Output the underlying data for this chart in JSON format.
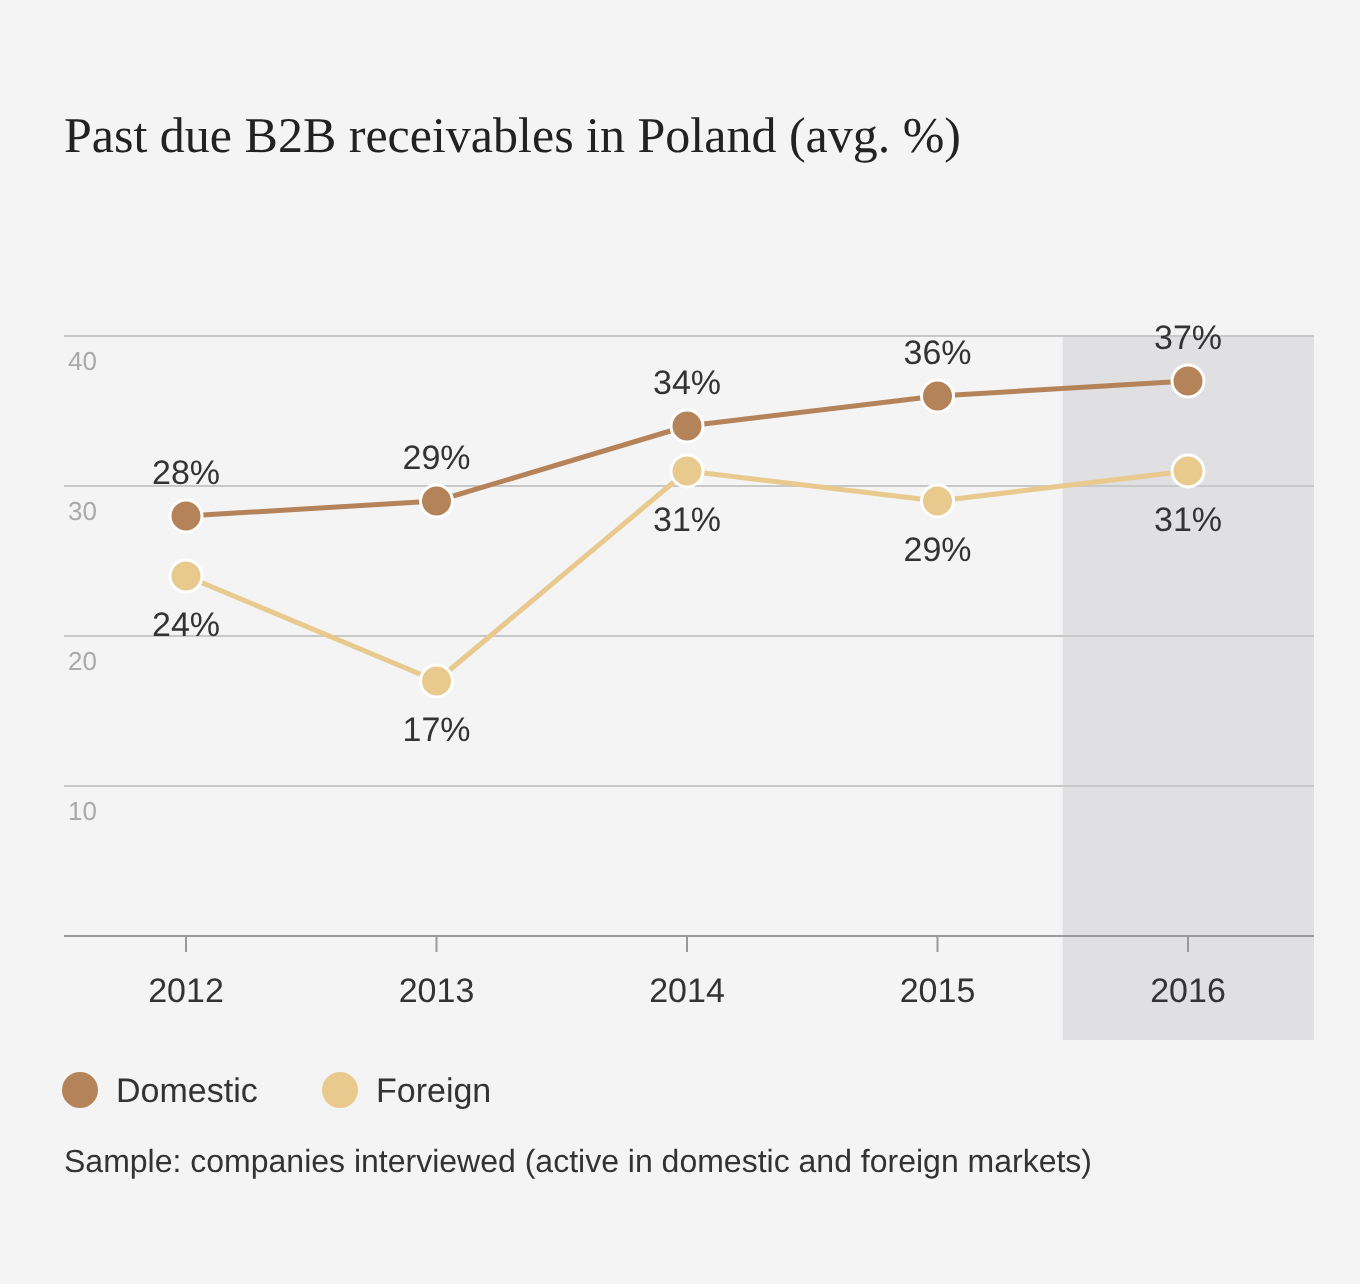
{
  "chart_data": {
    "type": "line",
    "title": "Past due B2B receivables in Poland (avg. %)",
    "categories": [
      "2012",
      "2013",
      "2014",
      "2015",
      "2016"
    ],
    "series": [
      {
        "name": "Domestic",
        "color": "#b5835a",
        "values": [
          28,
          29,
          34,
          36,
          37
        ],
        "value_labels": [
          "28%",
          "29%",
          "34%",
          "36%",
          "37%"
        ]
      },
      {
        "name": "Foreign",
        "color": "#e8c98e",
        "values": [
          24,
          17,
          31,
          29,
          31
        ],
        "value_labels": [
          "24%",
          "17%",
          "31%",
          "29%",
          "31%"
        ]
      }
    ],
    "ylim": [
      0,
      40
    ],
    "yticks": [
      {
        "value": 0,
        "label": null
      },
      10,
      20,
      30,
      40
    ],
    "grid": "y",
    "legend": "bottom",
    "marker": "circle",
    "bands": [
      {
        "axis": "x",
        "from": "2016",
        "to": "2016",
        "color": "#e0e0e2"
      }
    ],
    "annotations": [
      "Sample: companies interviewed (active in domestic and foreign markets)"
    ]
  }
}
